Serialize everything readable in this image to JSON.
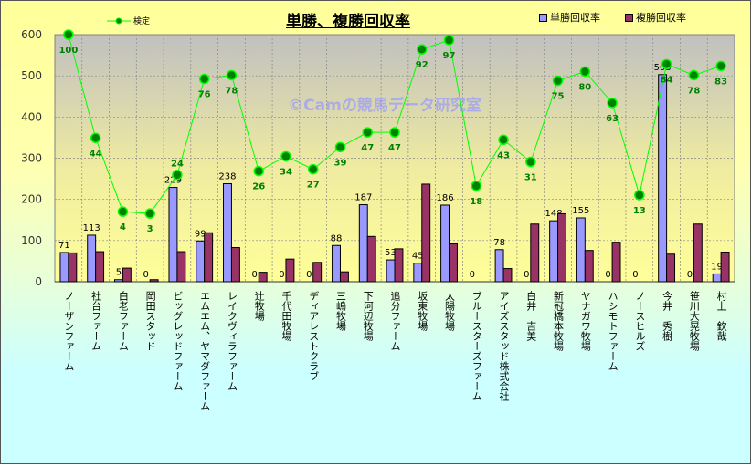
{
  "chart_data": {
    "type": "bar",
    "title": "単勝、複勝回収率",
    "watermark": "©Camの競馬データ研究室",
    "categories": [
      "ノーザンファーム",
      "社台ファーム",
      "白老ファーム",
      "岡田スタッド",
      "ビッグレッドファーム",
      "エムエム、ヤマダファーム",
      "レイクヴィラファーム",
      "辻牧場",
      "千代田牧場",
      "ディアレストクラブ",
      "三嶋牧場",
      "下河辺牧場",
      "追分ファーム",
      "坂東牧場",
      "太陽牧場",
      "ブルースターズファーム",
      "アイズスタッド株式会社",
      "白井　吉美",
      "新冠橋本牧場",
      "ヤナガワ牧場",
      "ハシモトファーム",
      "ノースヒルズ",
      "今井　秀樹",
      "笹川大晃牧場",
      "村上　欽哉"
    ],
    "series": [
      {
        "name": "単勝回収率",
        "type": "bar",
        "color": "#9999ff",
        "labels": true,
        "values": [
          71,
          113,
          5,
          0,
          229,
          99,
          238,
          0,
          0,
          0,
          88,
          187,
          53,
          45,
          186,
          0,
          78,
          0,
          148,
          155,
          0,
          0,
          503,
          0,
          19
        ]
      },
      {
        "name": "複勝回収率",
        "type": "bar",
        "color": "#993366",
        "labels": false,
        "values": [
          70,
          73,
          33,
          5,
          73,
          119,
          83,
          23,
          55,
          47,
          24,
          110,
          80,
          237,
          92,
          0,
          32,
          140,
          165,
          76,
          96,
          0,
          67,
          140,
          72
        ]
      },
      {
        "name": "検定",
        "type": "line",
        "color": "#00ff00",
        "axis": "secondary",
        "labels": true,
        "values": [
          100,
          44,
          4,
          3,
          24,
          76,
          78,
          26,
          34,
          27,
          39,
          47,
          47,
          92,
          97,
          18,
          43,
          31,
          75,
          80,
          63,
          13,
          84,
          78,
          83
        ]
      }
    ],
    "yticks": [
      0,
      100,
      200,
      300,
      400,
      500,
      600
    ],
    "ylim": [
      0,
      600
    ],
    "y2lim": [
      -34,
      100
    ],
    "grid": true,
    "legend": "top"
  }
}
